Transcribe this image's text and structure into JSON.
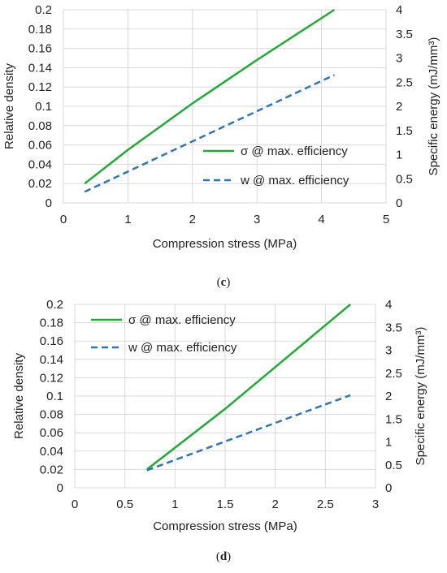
{
  "captions": [
    {
      "open": "(",
      "letter": "c",
      "close": ")"
    },
    {
      "open": "(",
      "letter": "d",
      "close": ")"
    }
  ],
  "chart_data": [
    {
      "type": "line",
      "xlabel": "Compression stress (MPa)",
      "ylabel": "Relative density",
      "y2label": "Specific energy (mJ/mm³)",
      "xlim": [
        0,
        5
      ],
      "ylim": [
        0,
        0.2
      ],
      "y2lim": [
        0,
        4
      ],
      "xticks": [
        "0",
        "1",
        "2",
        "3",
        "4",
        "5"
      ],
      "yticks": [
        "0",
        "0.02",
        "0.04",
        "0.06",
        "0.08",
        "0.1",
        "0.12",
        "0.14",
        "0.16",
        "0.18",
        "0.2"
      ],
      "y2ticks": [
        "0",
        "0.5",
        "1",
        "1.5",
        "2",
        "2.5",
        "3",
        "3.5",
        "4"
      ],
      "grid": true,
      "legend_position": "center-right",
      "series": [
        {
          "name": "σ @ max. efficiency",
          "axis": "left",
          "style": "solid",
          "color": "#1faa36",
          "x": [
            0.33,
            1.0,
            2.0,
            3.0,
            4.2
          ],
          "y": [
            0.02,
            0.055,
            0.103,
            0.148,
            0.2
          ]
        },
        {
          "name": "w @ max. efficiency",
          "axis": "right",
          "style": "dashed",
          "color": "#2e75b6",
          "x": [
            0.33,
            4.2
          ],
          "y": [
            0.23,
            2.65
          ]
        }
      ]
    },
    {
      "type": "line",
      "xlabel": "Compression stress (MPa)",
      "ylabel": "Relative density",
      "y2label": "Specific energy (mJ/mm³)",
      "xlim": [
        0,
        3
      ],
      "ylim": [
        0,
        0.2
      ],
      "y2lim": [
        0,
        4
      ],
      "xticks": [
        "0",
        "0.5",
        "1",
        "1.5",
        "2",
        "2.5",
        "3"
      ],
      "yticks": [
        "0",
        "0.02",
        "0.04",
        "0.06",
        "0.08",
        "0.1",
        "0.12",
        "0.14",
        "0.16",
        "0.18",
        "0.2"
      ],
      "y2ticks": [
        "0",
        "0.5",
        "1",
        "1.5",
        "2",
        "2.5",
        "3",
        "3.5",
        "4"
      ],
      "grid": true,
      "legend_position": "top-left",
      "series": [
        {
          "name": "σ @ max. efficiency",
          "axis": "left",
          "style": "solid",
          "color": "#1faa36",
          "x": [
            0.72,
            1.5,
            2.75
          ],
          "y": [
            0.02,
            0.086,
            0.2
          ]
        },
        {
          "name": "w @ max. efficiency",
          "axis": "right",
          "style": "dashed",
          "color": "#2e75b6",
          "x": [
            0.72,
            2.75
          ],
          "y": [
            0.38,
            2.02
          ]
        }
      ]
    }
  ]
}
